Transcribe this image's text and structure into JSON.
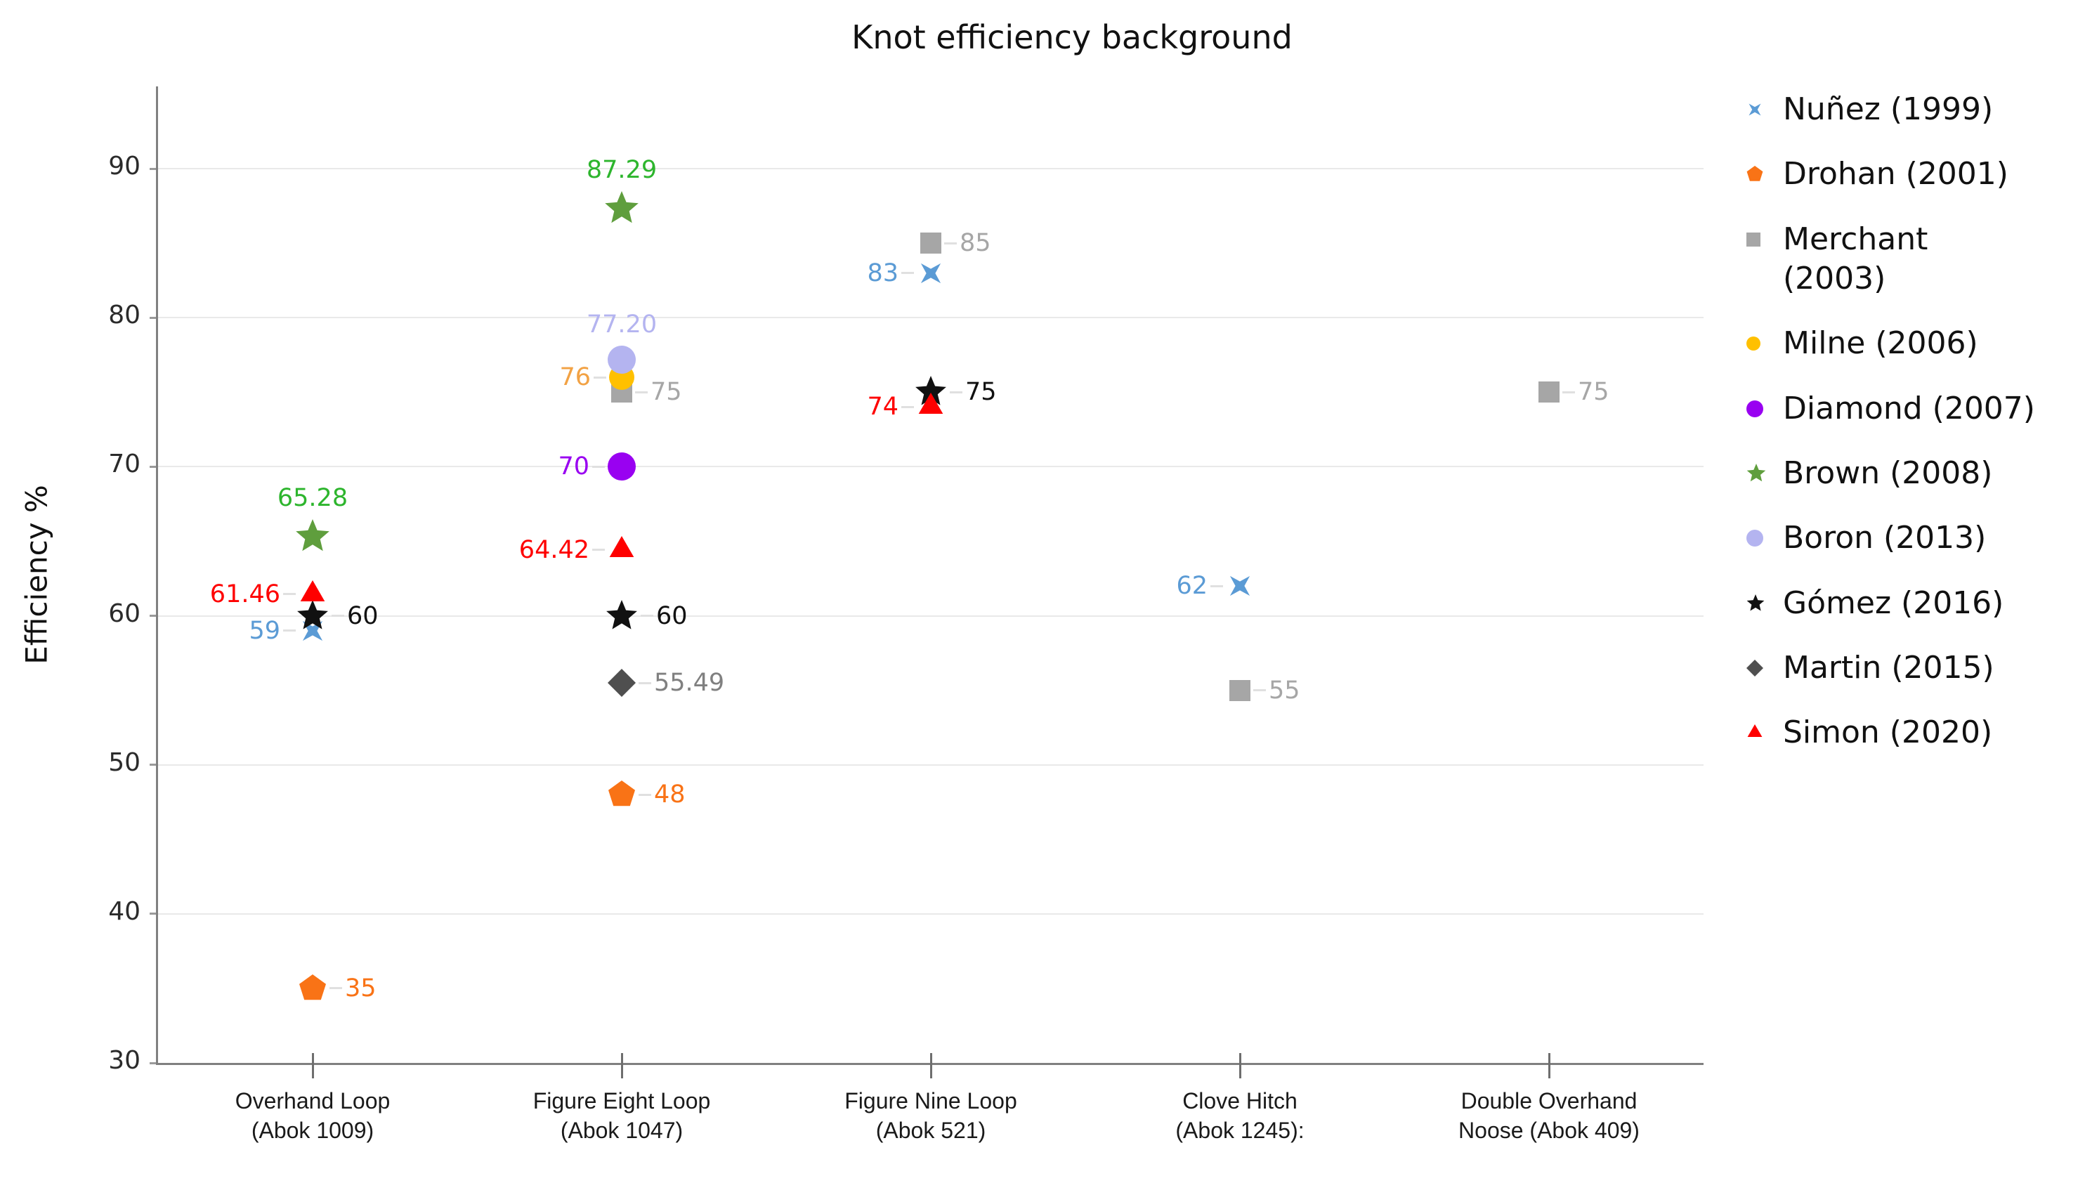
{
  "title": "Knot efficiency background",
  "chart_data": {
    "type": "scatter",
    "title": "Knot efficiency background",
    "ylabel": "Efficiency %",
    "ylim": [
      30,
      90
    ],
    "yticks": [
      30,
      40,
      50,
      60,
      70,
      80,
      90
    ],
    "grid": true,
    "legend_position": "right",
    "categories": [
      {
        "line1": "Overhand Loop",
        "line2": "(Abok 1009)"
      },
      {
        "line1": "Figure Eight Loop",
        "line2": "(Abok 1047)"
      },
      {
        "line1": "Figure Nine Loop",
        "line2": "(Abok 521)"
      },
      {
        "line1": "Clove Hitch",
        "line2": "(Abok 1245):"
      },
      {
        "line1": "Double Overhand",
        "line2": "Noose (Abok 409)"
      }
    ],
    "series": [
      {
        "name": "Nuñez (1999)",
        "marker": "x",
        "color": "#5b9bd5",
        "size": 20,
        "points": [
          {
            "category": 0,
            "value": 59,
            "label": "59",
            "label_side": "left"
          },
          {
            "category": 2,
            "value": 83,
            "label": "83",
            "label_side": "left"
          },
          {
            "category": 3,
            "value": 62,
            "label": "62",
            "label_side": "left"
          }
        ]
      },
      {
        "name": "Drohan (2001)",
        "marker": "pentagon",
        "color": "#f97316",
        "size": 20,
        "points": [
          {
            "category": 0,
            "value": 35,
            "label": "35",
            "label_side": "right"
          },
          {
            "category": 1,
            "value": 48,
            "label": "48",
            "label_side": "right"
          }
        ]
      },
      {
        "name": "Merchant (2003)",
        "marker": "square",
        "color": "#a6a6a6",
        "size": 15,
        "points": [
          {
            "category": 1,
            "value": 75,
            "label": "75",
            "label_side": "right"
          },
          {
            "category": 2,
            "value": 85,
            "label": "85",
            "label_side": "right"
          },
          {
            "category": 3,
            "value": 55,
            "label": "55",
            "label_side": "right"
          },
          {
            "category": 4,
            "value": 75,
            "label": "75",
            "label_side": "right"
          }
        ]
      },
      {
        "name": "Milne (2006)",
        "marker": "circle",
        "color": "#ffc000",
        "label_color": "#f2a244",
        "size": 18,
        "points": [
          {
            "category": 1,
            "value": 76,
            "label": "76",
            "label_side": "left"
          }
        ]
      },
      {
        "name": "Diamond (2007)",
        "marker": "circle",
        "color": "#9901f1",
        "size": 20,
        "points": [
          {
            "category": 1,
            "value": 70,
            "label": "70",
            "label_side": "left"
          }
        ]
      },
      {
        "name": "Brown (2008)",
        "marker": "star",
        "color": "#5f9e3d",
        "label_color": "#2db52d",
        "size": 25,
        "points": [
          {
            "category": 0,
            "value": 65.28,
            "label": "65.28",
            "label_side": "above"
          },
          {
            "category": 1,
            "value": 87.29,
            "label": "87.29",
            "label_side": "above"
          }
        ]
      },
      {
        "name": "Boron (2013)",
        "marker": "circle",
        "color": "#b4b4f0",
        "size": 20,
        "points": [
          {
            "category": 1,
            "value": 77.2,
            "label": "77.20",
            "label_side": "above"
          }
        ]
      },
      {
        "name": "Gómez (2016)",
        "marker": "star",
        "color": "#111111",
        "size": 23,
        "points": [
          {
            "category": 0,
            "value": 60,
            "label": "60",
            "label_side": "right"
          },
          {
            "category": 1,
            "value": 60,
            "label": "60",
            "label_side": "right"
          },
          {
            "category": 2,
            "value": 75,
            "label": "75",
            "label_side": "right"
          }
        ]
      },
      {
        "name": "Martin (2015)",
        "marker": "diamond",
        "color": "#4f4f4f",
        "label_color": "#808080",
        "size": 20,
        "points": [
          {
            "category": 1,
            "value": 55.49,
            "label": "55.49",
            "label_side": "right"
          }
        ]
      },
      {
        "name": "Simon (2020)",
        "marker": "triangle",
        "color": "#fe0000",
        "size": 20,
        "points": [
          {
            "category": 0,
            "value": 61.46,
            "label": "61.46",
            "label_side": "left"
          },
          {
            "category": 1,
            "value": 64.42,
            "label": "64.42",
            "label_side": "left"
          },
          {
            "category": 2,
            "value": 74,
            "label": "74",
            "label_side": "left"
          }
        ]
      }
    ]
  }
}
